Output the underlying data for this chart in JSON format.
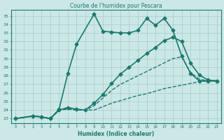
{
  "title": "Courbe de l'humidex pour Pescara",
  "xlabel": "Humidex (Indice chaleur)",
  "ylabel": "",
  "bg_color": "#cce8e6",
  "line_color": "#1a7a6e",
  "grid_color": "#aacfcc",
  "xlim": [
    -0.5,
    23.5
  ],
  "ylim": [
    22.5,
    35.7
  ],
  "xticks": [
    0,
    1,
    2,
    3,
    4,
    5,
    6,
    7,
    8,
    9,
    10,
    11,
    12,
    13,
    14,
    15,
    16,
    17,
    18,
    19,
    20,
    21,
    22,
    23
  ],
  "yticks": [
    23,
    24,
    25,
    26,
    27,
    28,
    29,
    30,
    31,
    32,
    33,
    34,
    35
  ],
  "lines": [
    {
      "x": [
        0,
        2,
        3,
        4,
        5,
        6,
        7,
        9,
        10,
        11,
        12,
        13,
        14,
        15,
        16,
        17,
        18,
        19,
        20,
        21,
        22,
        23
      ],
      "y": [
        23,
        23.3,
        23.2,
        23.0,
        24.1,
        28.3,
        31.7,
        35.2,
        33.2,
        33.1,
        33.0,
        33.0,
        33.3,
        34.7,
        33.9,
        34.7,
        33.3,
        30.3,
        28.3,
        27.4,
        27.4,
        27.4
      ],
      "style": "-",
      "marker": "D",
      "markersize": 2.5,
      "linewidth": 1.2
    },
    {
      "x": [
        0,
        2,
        3,
        4,
        5,
        6,
        7,
        8,
        9,
        10,
        11,
        12,
        13,
        14,
        15,
        16,
        17,
        18,
        19,
        20,
        21,
        22,
        23
      ],
      "y": [
        23,
        23.3,
        23.2,
        23.0,
        24.0,
        24.3,
        24.1,
        24.0,
        24.8,
        25.8,
        27.1,
        28.2,
        29.0,
        29.8,
        30.6,
        31.3,
        32.1,
        32.5,
        32.0,
        29.5,
        28.1,
        27.5,
        27.4
      ],
      "style": "-",
      "marker": "D",
      "markersize": 2.5,
      "linewidth": 1.2
    },
    {
      "x": [
        0,
        2,
        3,
        4,
        5,
        6,
        7,
        8,
        9,
        10,
        11,
        12,
        13,
        14,
        15,
        16,
        17,
        18,
        19,
        20,
        21,
        22,
        23
      ],
      "y": [
        23,
        23.3,
        23.2,
        23.0,
        24.0,
        24.1,
        24.0,
        24.0,
        24.0,
        24.4,
        24.8,
        25.1,
        25.4,
        25.7,
        25.9,
        26.2,
        26.5,
        26.7,
        26.9,
        27.1,
        27.3,
        27.4,
        27.4
      ],
      "style": "--",
      "marker": null,
      "markersize": 0,
      "linewidth": 1.0
    },
    {
      "x": [
        0,
        2,
        3,
        4,
        5,
        6,
        7,
        8,
        9,
        10,
        11,
        12,
        13,
        14,
        15,
        16,
        17,
        18,
        19,
        20,
        21,
        22,
        23
      ],
      "y": [
        23,
        23.3,
        23.2,
        23.0,
        24.0,
        24.2,
        24.0,
        24.0,
        24.5,
        25.4,
        26.3,
        27.0,
        27.5,
        28.0,
        28.5,
        29.0,
        29.5,
        30.0,
        30.2,
        28.4,
        27.6,
        27.4,
        27.4
      ],
      "style": "--",
      "marker": null,
      "markersize": 0,
      "linewidth": 1.0
    }
  ]
}
